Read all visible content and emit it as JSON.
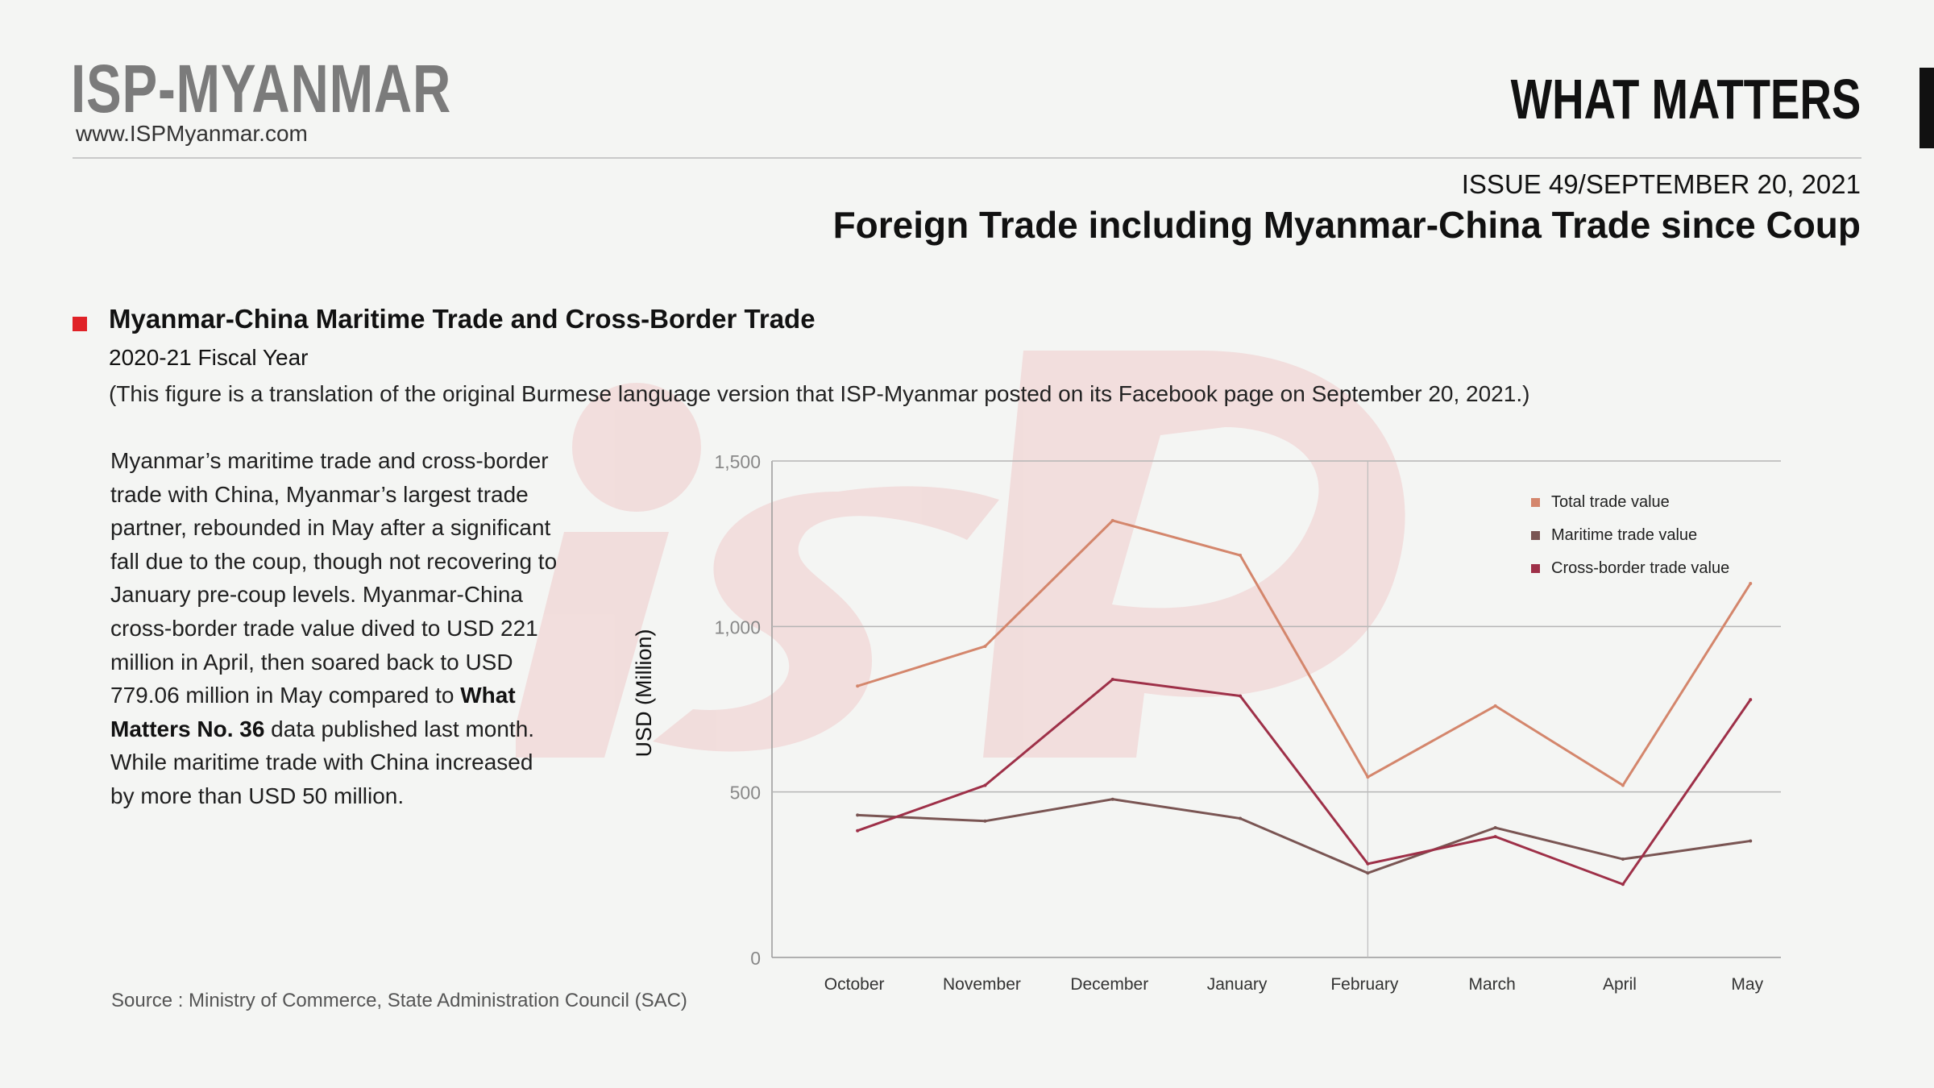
{
  "header": {
    "brand": "ISP-MYANMAR",
    "website": "www.ISPMyanmar.com",
    "series_name": "WHAT MATTERS",
    "issue": "ISSUE 49/SEPTEMBER 20, 2021",
    "report_title": "Foreign Trade including Myanmar-China Trade since Coup"
  },
  "section": {
    "title": "Myanmar-China Maritime Trade and Cross-Border Trade",
    "subtitle": "2020-21 Fiscal Year",
    "note": "(This figure is a translation of the original Burmese language version that ISP-Myanmar posted on its Facebook page on September 20, 2021.)"
  },
  "body": {
    "part1": "Myanmar’s maritime trade and cross-border trade with China, Myanmar’s largest trade partner, rebounded in May after a significant fall due to the coup, though not recovering to January pre-coup levels. Myanmar-China cross-border trade value dived to USD 221 million in April, then soared back to USD 779.06 million in May compared to ",
    "bold": "What Matters No. 36",
    "part2": " data published last month. While maritime trade with China increased by more than USD 50 million."
  },
  "source": "Source :  Ministry of Commerce, State Administration Council (SAC)",
  "colors": {
    "accent_red": "#e02227",
    "total": "#d4866c",
    "maritime": "#7a5553",
    "cross_border": "#9e3048",
    "watermark": "#f1d5d5"
  },
  "chart_data": {
    "type": "line",
    "ylabel": "USD (Million)",
    "ylim": [
      0,
      1500
    ],
    "yticks": [
      0,
      500,
      1000,
      1500
    ],
    "ytick_labels": [
      "0",
      "500",
      "1,000",
      "1,500"
    ],
    "categories": [
      "October",
      "November",
      "December",
      "January",
      "February",
      "March",
      "April",
      "May"
    ],
    "grid": "horizontal",
    "reference_line": "February",
    "legend_position": "top-right",
    "series": [
      {
        "name": "Total trade value",
        "color": "#d4866c",
        "values": [
          820,
          940,
          1320,
          1215,
          545,
          760,
          520,
          1130
        ]
      },
      {
        "name": "Maritime trade value",
        "color": "#7a5553",
        "values": [
          430,
          412,
          478,
          420,
          255,
          392,
          297,
          352
        ]
      },
      {
        "name": "Cross-border trade value",
        "color": "#9e3048",
        "values": [
          383,
          520,
          840,
          790,
          283,
          365,
          221,
          779
        ]
      }
    ]
  }
}
